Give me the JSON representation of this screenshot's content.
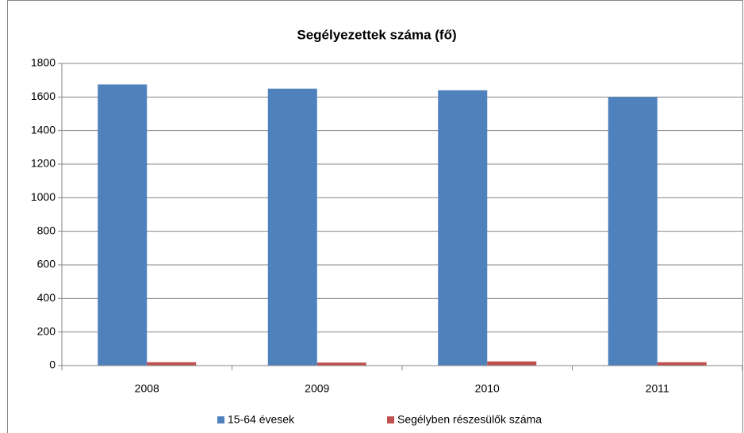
{
  "chart_data": {
    "type": "bar",
    "title": "Segélyezettek száma (fő)",
    "categories": [
      "2008",
      "2009",
      "2010",
      "2011"
    ],
    "series": [
      {
        "name": "15-64 évesek",
        "color": "#4f81bd",
        "values": [
          1675,
          1650,
          1640,
          1600
        ]
      },
      {
        "name": "Segélyben részesülők száma",
        "color": "#c0504d",
        "values": [
          20,
          18,
          25,
          20
        ]
      }
    ],
    "ylim": [
      0,
      1800
    ],
    "yticks": [
      0,
      200,
      400,
      600,
      800,
      1000,
      1200,
      1400,
      1600,
      1800
    ],
    "grid": true,
    "legend": "bottom"
  }
}
